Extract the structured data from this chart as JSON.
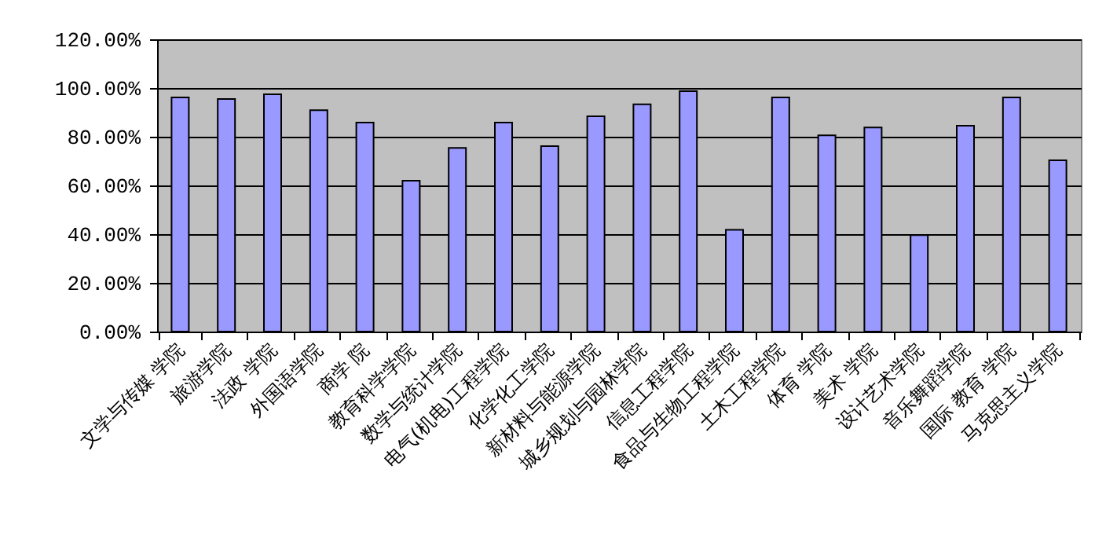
{
  "chart_data": {
    "type": "bar",
    "categories": [
      "文学与传媒 学院",
      "旅游学院",
      "法政 学院",
      "外国语学院",
      "商学 院",
      "教育科学学院",
      "数学与统计学院",
      "电气(机电)工程学院",
      "化学化工学院",
      "新材料与能源学院",
      "城乡规划与园林学院",
      "信息工程学院",
      "食品与生物工程学院",
      "土木工程学院",
      "体育 学院",
      "美术 学院",
      "设计艺术学院",
      "音乐舞蹈学院",
      "国际 教育 学院",
      "马克思主义学院"
    ],
    "values": [
      96.1,
      95.5,
      97.4,
      90.9,
      85.8,
      61.9,
      75.4,
      85.8,
      76.1,
      88.4,
      93.3,
      98.7,
      41.8,
      96.1,
      80.6,
      83.8,
      39.6,
      84.5,
      96.1,
      70.3
    ],
    "color": "#9999ff",
    "ylim": [
      0,
      120
    ],
    "yticks": [
      {
        "value": 0,
        "label": "0.00%"
      },
      {
        "value": 20,
        "label": "20.00%"
      },
      {
        "value": 40,
        "label": "40.00%"
      },
      {
        "value": 60,
        "label": "60.00%"
      },
      {
        "value": 80,
        "label": "80.00%"
      },
      {
        "value": 100,
        "label": "100.00%"
      },
      {
        "value": 120,
        "label": "120.00%"
      }
    ],
    "grid": "y"
  }
}
